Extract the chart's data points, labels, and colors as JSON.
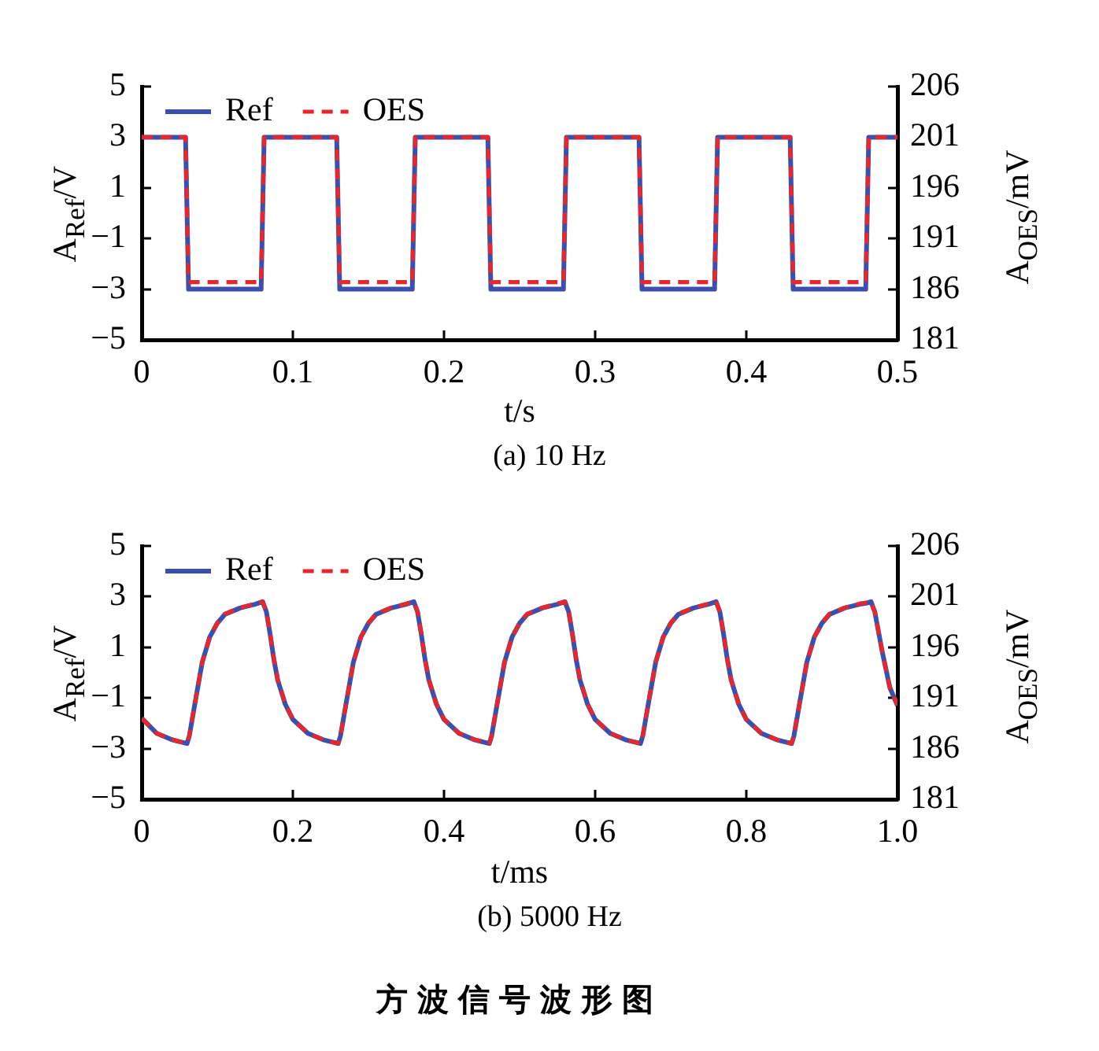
{
  "chart_data": [
    {
      "type": "line",
      "subtitle": "(a) 10 Hz",
      "xlabel": "t/s",
      "ylabel": "A$_{Ref}$/V",
      "y2label": "A$_{OES}$/mV",
      "legend": "top left",
      "x": [
        0,
        0.029,
        0.031,
        0.079,
        0.081,
        0.129,
        0.131,
        0.179,
        0.181,
        0.229,
        0.231,
        0.279,
        0.281,
        0.329,
        0.331,
        0.379,
        0.381,
        0.429,
        0.431,
        0.479,
        0.481,
        0.5
      ],
      "series": [
        {
          "name": "Ref",
          "color": "#3b50ae",
          "line_style": "solid",
          "values": [
            3,
            3,
            -3,
            -3,
            3,
            3,
            -3,
            -3,
            3,
            3,
            -3,
            -3,
            3,
            3,
            -3,
            -3,
            3,
            3,
            -3,
            -3,
            3,
            3
          ]
        },
        {
          "name": "OES",
          "color": "#e5282d",
          "line_style": "dashed",
          "axis": "y2",
          "values": [
            201,
            201,
            186.7,
            186.7,
            201,
            201,
            186.7,
            186.7,
            201,
            201,
            186.7,
            186.7,
            201,
            201,
            186.7,
            186.7,
            201,
            201,
            186.7,
            186.7,
            201,
            201
          ]
        }
      ],
      "xlim": [
        0,
        0.5
      ],
      "xticks": [
        0,
        0.1,
        0.2,
        0.3,
        0.4,
        0.5
      ],
      "ylim": [
        -5,
        5
      ],
      "yticks": [
        {
          "value": -5,
          "label": "−5"
        },
        {
          "value": -3,
          "label": "−3"
        },
        {
          "value": -1,
          "label": "−1"
        },
        1,
        3,
        5
      ],
      "y2lim": [
        181,
        206
      ],
      "y2ticks": [
        181,
        186,
        191,
        196,
        201,
        206
      ]
    },
    {
      "type": "line",
      "subtitle": "(b) 5000 Hz",
      "xlabel": "t/ms",
      "ylabel": "A$_{Ref}$/V",
      "y2label": "A$_{OES}$/mV",
      "legend": "top left",
      "annotations": [
        "方波信号波形图"
      ],
      "x": [
        0,
        0.02,
        0.04,
        0.06,
        0.063,
        0.07,
        0.08,
        0.09,
        0.1,
        0.11,
        0.13,
        0.15,
        0.16,
        0.165,
        0.17,
        0.175,
        0.18,
        0.19,
        0.2,
        0.22,
        0.24,
        0.26,
        0.263,
        0.27,
        0.28,
        0.29,
        0.3,
        0.31,
        0.33,
        0.35,
        0.36,
        0.365,
        0.37,
        0.375,
        0.38,
        0.39,
        0.4,
        0.42,
        0.44,
        0.46,
        0.463,
        0.47,
        0.48,
        0.49,
        0.5,
        0.51,
        0.53,
        0.55,
        0.56,
        0.565,
        0.57,
        0.575,
        0.58,
        0.59,
        0.6,
        0.62,
        0.64,
        0.66,
        0.663,
        0.67,
        0.68,
        0.69,
        0.7,
        0.71,
        0.73,
        0.75,
        0.76,
        0.765,
        0.77,
        0.775,
        0.78,
        0.79,
        0.8,
        0.82,
        0.84,
        0.86,
        0.863,
        0.87,
        0.88,
        0.89,
        0.9,
        0.91,
        0.93,
        0.95,
        0.96,
        0.965,
        0.97,
        0.975,
        0.98,
        0.99,
        1
      ],
      "series": [
        {
          "name": "Ref",
          "color": "#3b50ae",
          "line_style": "solid",
          "values": [
            -1.8,
            -2.4,
            -2.65,
            -2.8,
            -2.5,
            -1.3,
            0.4,
            1.4,
            1.95,
            2.3,
            2.55,
            2.7,
            2.8,
            2.4,
            1.5,
            0.5,
            -0.3,
            -1.25,
            -1.85,
            -2.4,
            -2.65,
            -2.8,
            -2.5,
            -1.3,
            0.4,
            1.4,
            1.95,
            2.3,
            2.55,
            2.7,
            2.8,
            2.4,
            1.5,
            0.5,
            -0.3,
            -1.25,
            -1.85,
            -2.4,
            -2.65,
            -2.8,
            -2.5,
            -1.3,
            0.4,
            1.4,
            1.95,
            2.3,
            2.55,
            2.7,
            2.8,
            2.4,
            1.5,
            0.5,
            -0.3,
            -1.25,
            -1.85,
            -2.4,
            -2.65,
            -2.8,
            -2.5,
            -1.3,
            0.4,
            1.4,
            1.95,
            2.3,
            2.55,
            2.7,
            2.8,
            2.4,
            1.5,
            0.5,
            -0.3,
            -1.25,
            -1.85,
            -2.4,
            -2.65,
            -2.8,
            -2.5,
            -1.3,
            0.4,
            1.4,
            1.95,
            2.3,
            2.55,
            2.7,
            2.75,
            2.8,
            2.4,
            1.6,
            0.8,
            -0.6,
            -1.3
          ]
        },
        {
          "name": "OES",
          "color": "#e5282d",
          "line_style": "dashed",
          "axis": "y2",
          "values": [
            189,
            187.5,
            186.9,
            186.5,
            187.3,
            190.3,
            194.5,
            197,
            198.4,
            199.3,
            199.9,
            200.3,
            200.5,
            199.5,
            197.3,
            194.8,
            192.8,
            190.4,
            188.9,
            187.5,
            186.9,
            186.5,
            187.3,
            190.3,
            194.5,
            197,
            198.4,
            199.3,
            199.9,
            200.3,
            200.5,
            199.5,
            197.3,
            194.8,
            192.8,
            190.4,
            188.9,
            187.5,
            186.9,
            186.5,
            187.3,
            190.3,
            194.5,
            197,
            198.4,
            199.3,
            199.9,
            200.3,
            200.5,
            199.5,
            197.3,
            194.8,
            192.8,
            190.4,
            188.9,
            187.5,
            186.9,
            186.5,
            187.3,
            190.3,
            194.5,
            197,
            198.4,
            199.3,
            199.9,
            200.3,
            200.5,
            199.5,
            197.3,
            194.8,
            192.8,
            190.4,
            188.9,
            187.5,
            186.9,
            186.5,
            187.3,
            190.3,
            194.5,
            197,
            198.4,
            199.3,
            199.9,
            200.3,
            200.4,
            200.5,
            199.5,
            197.5,
            195.5,
            192,
            190.3
          ]
        }
      ],
      "xlim": [
        0,
        1
      ],
      "xticks": [
        0,
        0.2,
        0.4,
        0.6,
        0.8,
        {
          "value": 1,
          "label": "1.0"
        }
      ],
      "ylim": [
        -5,
        5
      ],
      "yticks": [
        {
          "value": -5,
          "label": "−5"
        },
        {
          "value": -3,
          "label": "−3"
        },
        {
          "value": -1,
          "label": "−1"
        },
        1,
        3,
        5
      ],
      "y2lim": [
        181,
        206
      ],
      "y2ticks": [
        181,
        186,
        191,
        196,
        201,
        206
      ]
    }
  ]
}
